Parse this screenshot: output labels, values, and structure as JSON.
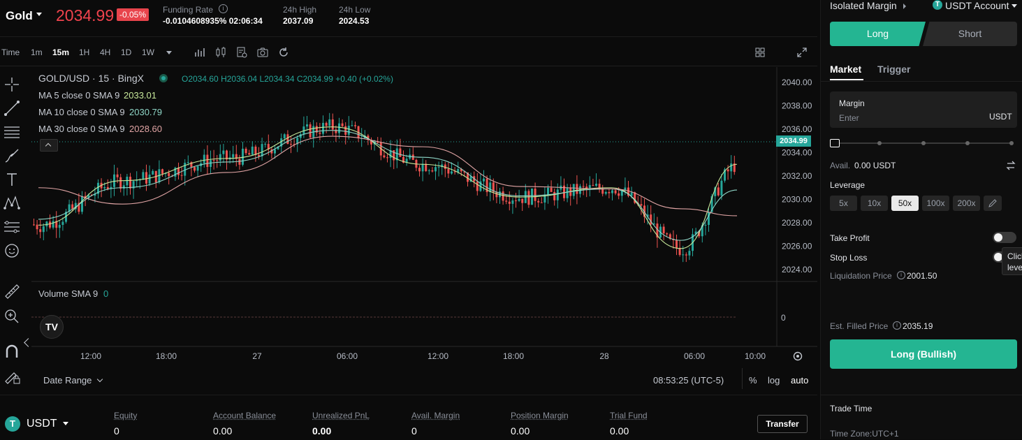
{
  "header": {
    "symbol": "Gold",
    "price": "2034.99",
    "change": "-0.05%",
    "funding_label": "Funding Rate",
    "funding_value": "-0.0104608935% 02:06:34",
    "high_label": "24h High",
    "high_value": "2037.09",
    "low_label": "24h Low",
    "low_value": "2024.53"
  },
  "toolbar": {
    "intervals": [
      "Time",
      "1m",
      "15m",
      "1H",
      "4H",
      "1D",
      "1W"
    ],
    "active_interval": "15m"
  },
  "chart": {
    "title": "GOLD/USD · 15 · BingX",
    "ohlc": {
      "o": "O2034.60",
      "h": "H2036.04",
      "l": "L2034.34",
      "c": "C2034.99",
      "chg": "+0.40 (+0.02%)"
    },
    "ma5_label": "MA 5 close 0 SMA 9",
    "ma5_value": "2033.01",
    "ma10_label": "MA 10 close 0 SMA 9",
    "ma10_value": "2030.79",
    "ma30_label": "MA 30 close 0 SMA 9",
    "ma30_value": "2028.60",
    "volume_label": "Volume SMA 9",
    "volume_value": "0",
    "volume_axis": "0",
    "price_tag": "2034.99",
    "y_ticks": [
      "2040.00",
      "2038.00",
      "2036.00",
      "2034.00",
      "2032.00",
      "2030.00",
      "2028.00",
      "2026.00",
      "2024.00"
    ],
    "x_ticks": [
      "12:00",
      "18:00",
      "27",
      "06:00",
      "12:00",
      "18:00",
      "28",
      "06:00",
      "10:00"
    ],
    "date_range": "Date Range",
    "clock": "08:53:25 (UTC-5)",
    "pct": "%",
    "log": "log",
    "auto": "auto"
  },
  "chart_data": {
    "type": "line",
    "title": "",
    "xlabel": "",
    "ylabel": "",
    "ylim": [
      2023.2,
      2041.0
    ],
    "x": [
      "12:00",
      "18:00",
      "27",
      "06:00",
      "12:00",
      "18:00",
      "28",
      "06:00",
      "10:00"
    ],
    "series": [
      {
        "name": "MA 5",
        "values": [
          2027.8,
          2031.6,
          2033.5,
          2036.2,
          2033.0,
          2030.2,
          2031.0,
          2025.8,
          2033.0
        ]
      },
      {
        "name": "MA 10",
        "values": [
          2028.3,
          2031.0,
          2033.2,
          2035.9,
          2033.6,
          2030.3,
          2030.9,
          2026.5,
          2030.8
        ]
      },
      {
        "name": "MA 30",
        "values": [
          2031.0,
          2029.6,
          2032.3,
          2035.4,
          2034.5,
          2031.1,
          2030.9,
          2029.2,
          2028.6
        ]
      }
    ]
  },
  "bottom": {
    "currency": "USDT",
    "equity_label": "Equity",
    "equity_value": "0",
    "balance_label": "Account Balance",
    "balance_value": "0.00",
    "pnl_label": "Unrealized PnL",
    "pnl_value": "0.00",
    "avail_label": "Avail. Margin",
    "avail_value": "0",
    "posmargin_label": "Position Margin",
    "posmargin_value": "0.00",
    "trial_label": "Trial Fund",
    "trial_value": "0.00",
    "transfer": "Transfer"
  },
  "panel": {
    "margin_mode": "Isolated Margin",
    "account": "USDT Account",
    "long": "Long",
    "short": "Short",
    "tab_market": "Market",
    "tab_trigger": "Trigger",
    "margin_label": "Margin",
    "margin_placeholder": "Enter",
    "margin_unit": "USDT",
    "avail_label": "Avail.",
    "avail_value": "0.00 USDT",
    "leverage_label": "Leverage",
    "leverages": [
      "5x",
      "10x",
      "50x",
      "100x",
      "200x"
    ],
    "selected_leverage": "50x",
    "take_profit": "Take Profit",
    "stop_loss": "Stop Loss",
    "liq_label": "Liquidation Price",
    "liq_value": "2001.50",
    "tooltip_a": "Click",
    "tooltip_b": "leve",
    "filled_label": "Est. Filled Price",
    "filled_value": "2035.19",
    "submit": "Long (Bullish)",
    "trade_time": "Trade Time",
    "timezone": "Time Zone:UTC+1"
  },
  "colors": {
    "up": "#26a69a",
    "down": "#ef5350",
    "accent": "#24b592",
    "ma5": "#c7e89a",
    "ma10": "#8fd6c7",
    "ma30": "#e0a4a4"
  }
}
